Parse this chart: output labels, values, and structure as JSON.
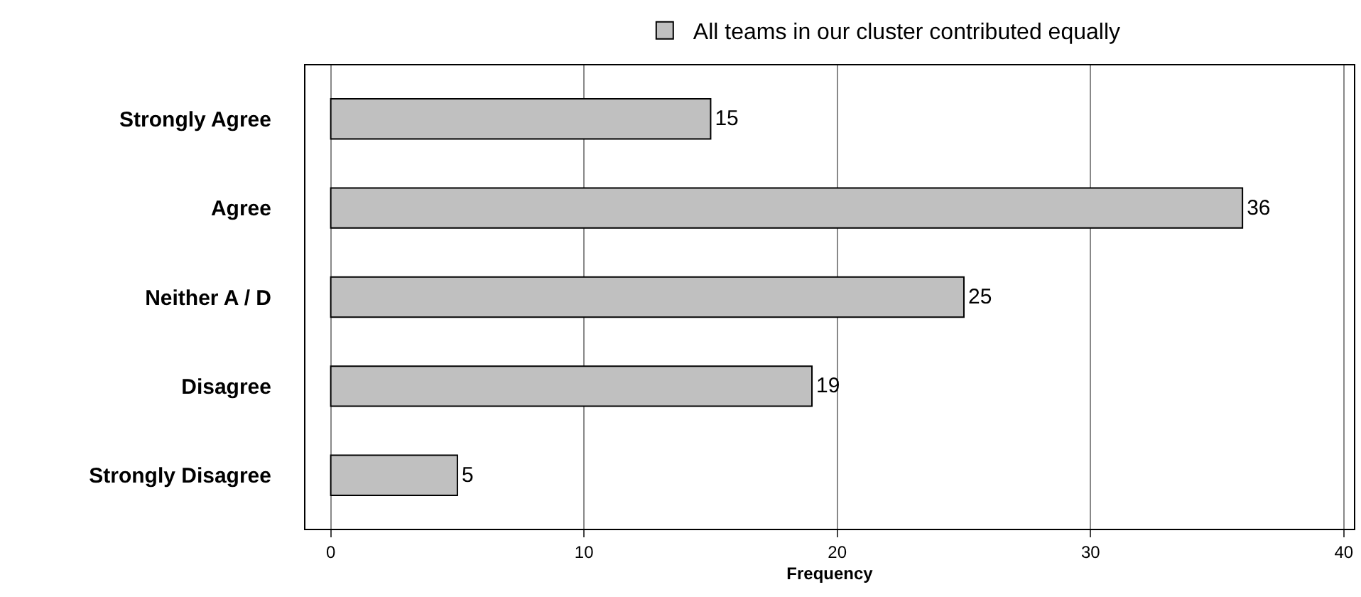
{
  "chart_data": {
    "type": "bar",
    "orientation": "horizontal",
    "categories": [
      "Strongly Agree",
      "Agree",
      "Neither A / D",
      "Disagree",
      "Strongly Disagree"
    ],
    "series": [
      {
        "name": "All teams in our cluster contributed equally",
        "color": "#c0c0c0",
        "values": [
          15,
          36,
          25,
          19,
          5
        ]
      }
    ],
    "xlabel": "Frequency",
    "xlim": [
      -1,
      40.4
    ],
    "xticks": [
      0,
      10,
      20,
      30,
      40
    ],
    "grid": "x",
    "legend": "top",
    "data_labels": true
  }
}
